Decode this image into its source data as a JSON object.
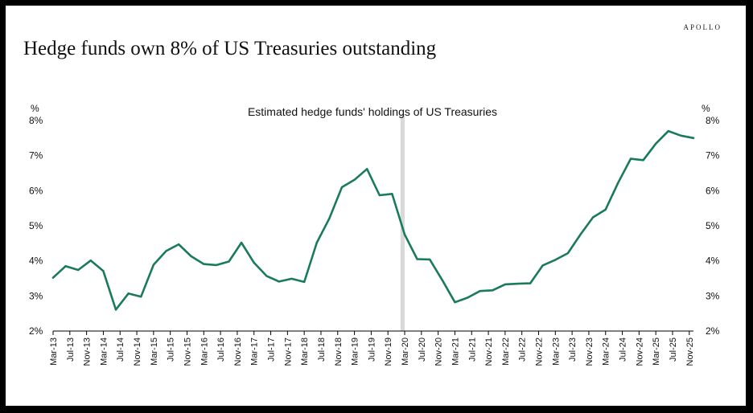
{
  "brand": "APOLLO",
  "page_title": "Hedge funds own 8% of US Treasuries outstanding",
  "colors": {
    "line": "#1a7a5e",
    "shade": "#d9d9d9"
  },
  "chart_data": {
    "type": "line",
    "title": "Estimated hedge funds' holdings of US Treasuries",
    "xlabel": "",
    "ylabel_left": "%",
    "ylabel_right": "%",
    "ylim": [
      2,
      8
    ],
    "yticks": [
      "2%",
      "3%",
      "4%",
      "5%",
      "6%",
      "7%",
      "8%"
    ],
    "x_tick_labels": [
      "Mar-13",
      "Jul-13",
      "Nov-13",
      "Mar-14",
      "Jul-14",
      "Nov-14",
      "Mar-15",
      "Jul-15",
      "Nov-15",
      "Mar-16",
      "Jul-16",
      "Nov-16",
      "Mar-17",
      "Jul-17",
      "Nov-17",
      "Mar-18",
      "Jul-18",
      "Nov-18",
      "Mar-19",
      "Jul-19",
      "Nov-19",
      "Mar-20",
      "Jul-20",
      "Nov-20",
      "Mar-21",
      "Jul-21",
      "Nov-21",
      "Mar-22",
      "Jul-22",
      "Nov-22",
      "Mar-23",
      "Jul-23",
      "Nov-23",
      "Mar-24",
      "Jul-24",
      "Nov-24",
      "Mar-25",
      "Jul-25",
      "Nov-25"
    ],
    "shaded_periods": [
      {
        "start": "Feb-20",
        "end": "Mar-20"
      }
    ],
    "series": [
      {
        "name": "Hedge funds' holdings of US Treasuries",
        "x": [
          "Mar-13",
          "Jun-13",
          "Sep-13",
          "Dec-13",
          "Mar-14",
          "Jun-14",
          "Sep-14",
          "Dec-14",
          "Mar-15",
          "Jun-15",
          "Sep-15",
          "Dec-15",
          "Mar-16",
          "Jun-16",
          "Sep-16",
          "Dec-16",
          "Mar-17",
          "Jun-17",
          "Sep-17",
          "Dec-17",
          "Mar-18",
          "Jun-18",
          "Sep-18",
          "Dec-18",
          "Mar-19",
          "Jun-19",
          "Sep-19",
          "Dec-19",
          "Mar-20",
          "Jun-20",
          "Sep-20",
          "Dec-20",
          "Mar-21",
          "Jun-21",
          "Sep-21",
          "Dec-21",
          "Mar-22",
          "Jun-22",
          "Sep-22",
          "Dec-22",
          "Mar-23",
          "Jun-23",
          "Sep-23",
          "Dec-23",
          "Mar-24",
          "Jun-24",
          "Sep-24",
          "Dec-24",
          "Mar-25",
          "Jun-25",
          "Sep-25",
          "Dec-25"
        ],
        "values": [
          3.52,
          3.85,
          3.74,
          4.01,
          3.71,
          2.61,
          3.07,
          2.98,
          3.89,
          4.28,
          4.47,
          4.13,
          3.91,
          3.88,
          3.98,
          4.52,
          3.95,
          3.57,
          3.41,
          3.49,
          3.4,
          4.52,
          5.21,
          6.1,
          6.31,
          6.62,
          5.87,
          5.91,
          4.75,
          4.05,
          4.04,
          3.45,
          2.82,
          2.95,
          3.14,
          3.16,
          3.33,
          3.35,
          3.36,
          3.87,
          4.03,
          4.22,
          4.75,
          5.24,
          5.46,
          6.23,
          6.91,
          6.87,
          7.34,
          7.7,
          7.57,
          7.5
        ]
      }
    ]
  }
}
